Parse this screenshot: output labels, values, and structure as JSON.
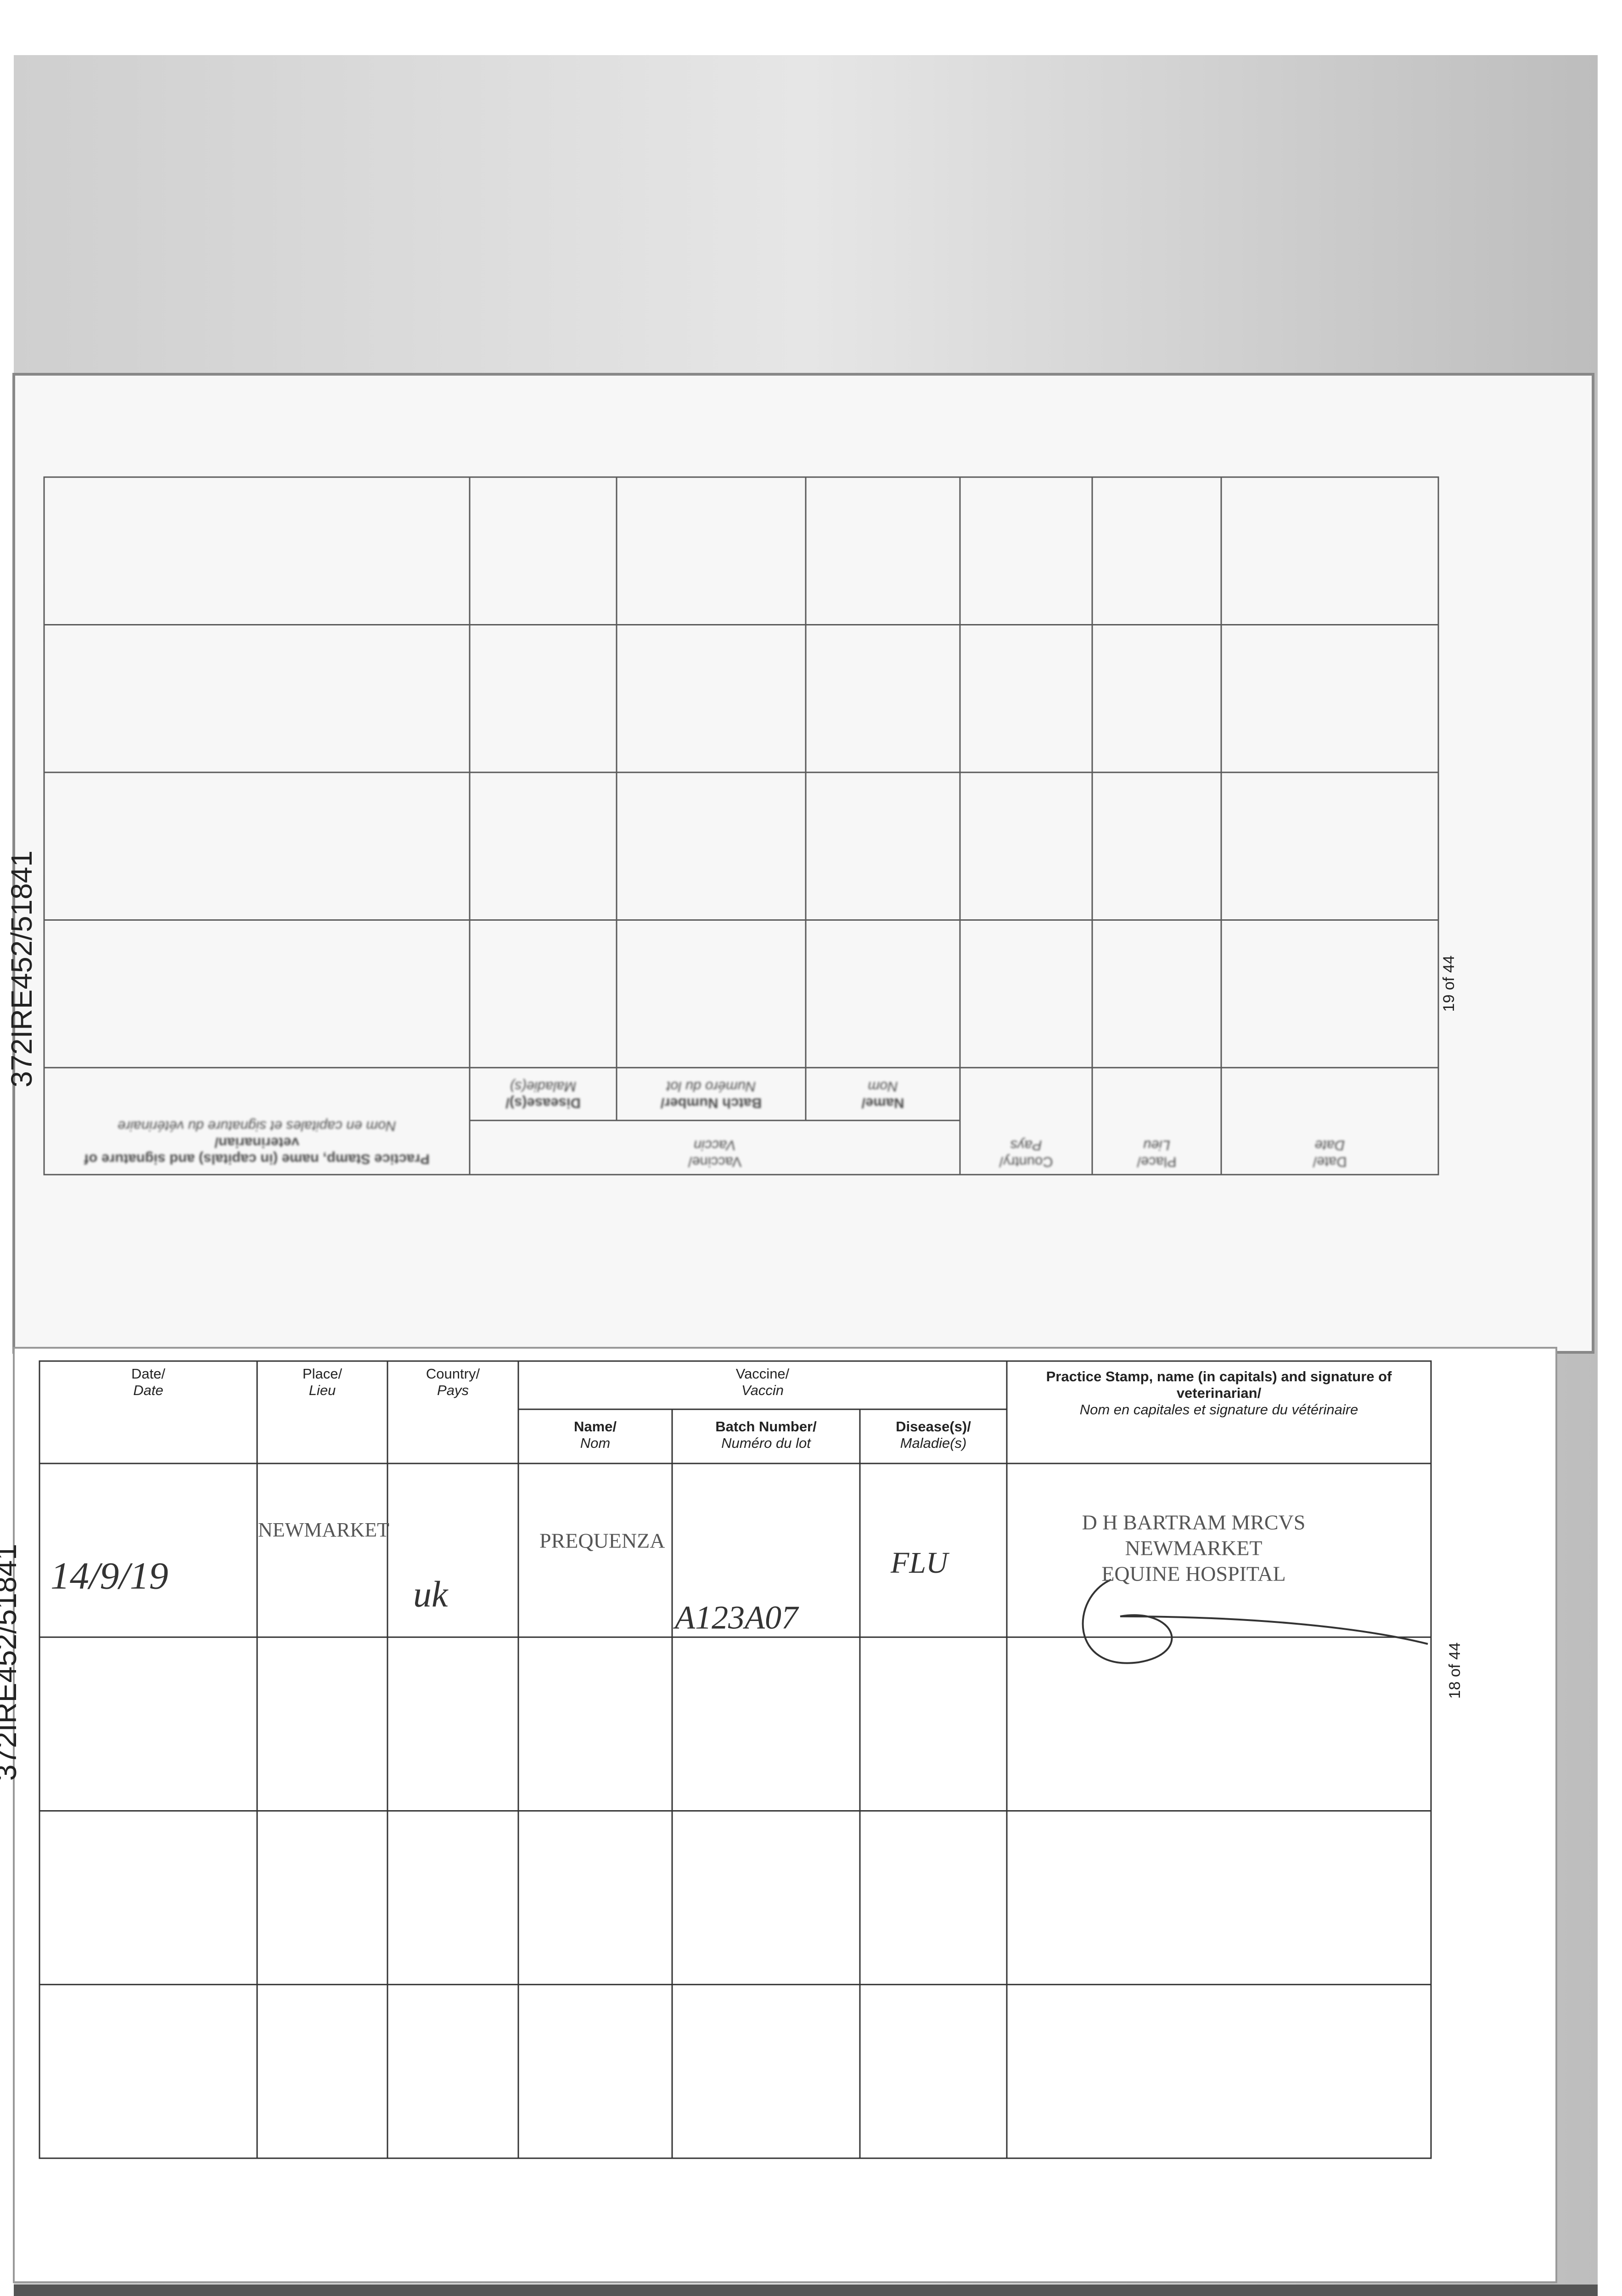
{
  "upper_page": {
    "page_number": "19 of 44",
    "document_id": "372IRE452/51841",
    "table": {
      "header": {
        "date": [
          "Date/",
          "Date"
        ],
        "place": [
          "Place/",
          "Lieu"
        ],
        "country": [
          "Country/",
          "Pays"
        ],
        "vaccine": [
          "Vaccine/",
          "Vaccin"
        ],
        "name": [
          "Name/",
          "Nom"
        ],
        "batch_number": [
          "Batch Number/",
          "Numéro du lot"
        ],
        "diseases": [
          "Disease(s)/",
          "Maladie(s)"
        ],
        "practice_stamp": [
          "Practice Stamp, name (in capitals) and signature of",
          "veterinarian/",
          "Nom en capitales et signature du vétérinaire"
        ]
      }
    }
  },
  "lower_page": {
    "page_number": "18 of 44",
    "document_id": "372IRE452/51841",
    "table": {
      "header": {
        "date": [
          "Date/",
          "Date"
        ],
        "place": [
          "Place/",
          "Lieu"
        ],
        "country": [
          "Country/",
          "Pays"
        ],
        "vaccine": [
          "Vaccine/",
          "Vaccin"
        ],
        "name": [
          "Name/",
          "Nom"
        ],
        "batch_number": [
          "Batch Number/",
          "Numéro du lot"
        ],
        "diseases": [
          "Disease(s)/",
          "Maladie(s)"
        ],
        "practice_stamp": [
          "Practice Stamp, name (in capitals) and signature of",
          "veterinarian/",
          "Nom en capitales et signature du vétérinaire"
        ]
      },
      "rows": [
        {
          "date": "14/9/19",
          "place": "NEWMARKET",
          "country": "uk",
          "name": "PREQUENZA",
          "batch_number": "A123A07",
          "diseases": "FLU",
          "practice_stamp": [
            "D H BARTRAM MRCVS",
            "NEWMARKET",
            "EQUINE HOSPITAL"
          ]
        }
      ]
    }
  }
}
